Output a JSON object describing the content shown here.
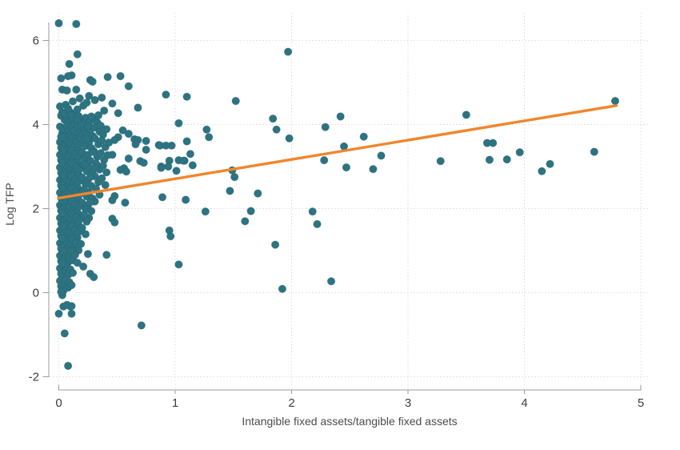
{
  "chart_data": {
    "type": "scatter",
    "title": "",
    "xlabel": "Intangible fixed assets/tangible fixed assets",
    "ylabel": "Log TFP",
    "xlim": [
      0,
      5
    ],
    "ylim": [
      -2,
      6
    ],
    "grid": "dotted",
    "legend": "none",
    "x_ticks": {
      "values": [
        0,
        1,
        2,
        3,
        4,
        5
      ],
      "labels": [
        "0",
        "1",
        "2",
        "3",
        "4",
        "5"
      ]
    },
    "y_ticks": {
      "values": [
        -2,
        0,
        2,
        4,
        6
      ],
      "labels": [
        "-2",
        "0",
        "2",
        "4",
        "6"
      ]
    },
    "colors": {
      "point": "#2d7381",
      "point_edge": "#23616f",
      "trend": "#f0862c",
      "axis": "#9b9b9b",
      "tick_text": "#3d3d3d",
      "axis_title": "#4c4c4c",
      "grid": "#d9d9d9",
      "background": "#ffffff"
    },
    "trend": {
      "x1": 0,
      "y1": 2.25,
      "x2": 4.79,
      "y2": 4.45
    },
    "points": [
      [
        0.0,
        6.41
      ],
      [
        0.15,
        6.39
      ],
      [
        1.97,
        5.73
      ],
      [
        0.16,
        5.67
      ],
      [
        0.09,
        5.44
      ],
      [
        0.11,
        5.17
      ],
      [
        0.08,
        5.15
      ],
      [
        0.53,
        5.15
      ],
      [
        0.42,
        5.13
      ],
      [
        0.02,
        5.1
      ],
      [
        0.27,
        5.06
      ],
      [
        0.29,
        5.02
      ],
      [
        0.6,
        4.91
      ],
      [
        0.03,
        4.83
      ],
      [
        0.15,
        4.83
      ],
      [
        0.07,
        4.81
      ],
      [
        0.92,
        4.71
      ],
      [
        0.26,
        4.68
      ],
      [
        1.1,
        4.66
      ],
      [
        0.18,
        4.62
      ],
      [
        0.37,
        4.64
      ],
      [
        0.31,
        4.58
      ],
      [
        1.52,
        4.56
      ],
      [
        4.78,
        4.56
      ],
      [
        0.46,
        4.5
      ],
      [
        0.06,
        4.47
      ],
      [
        1.84,
        4.14
      ],
      [
        2.42,
        4.19
      ],
      [
        3.5,
        4.23
      ],
      [
        0.68,
        4.4
      ],
      [
        0.39,
        4.33
      ],
      [
        0.01,
        4.43
      ],
      [
        0.03,
        4.29
      ],
      [
        0.1,
        4.29
      ],
      [
        0.51,
        4.27
      ],
      [
        0.13,
        4.24
      ],
      [
        1.03,
        4.03
      ],
      [
        2.29,
        3.94
      ],
      [
        1.87,
        3.88
      ],
      [
        1.27,
        3.88
      ],
      [
        0.55,
        3.86
      ],
      [
        0.6,
        3.78
      ],
      [
        1.29,
        3.7
      ],
      [
        1.98,
        3.67
      ],
      [
        0.51,
        3.7
      ],
      [
        0.48,
        3.63
      ],
      [
        0.65,
        3.65
      ],
      [
        0.68,
        3.63
      ],
      [
        0.66,
        3.53
      ],
      [
        0.75,
        3.61
      ],
      [
        1.1,
        3.6
      ],
      [
        0.86,
        3.51
      ],
      [
        0.87,
        3.5
      ],
      [
        0.92,
        3.5
      ],
      [
        0.97,
        3.5
      ],
      [
        2.45,
        3.48
      ],
      [
        3.68,
        3.56
      ],
      [
        3.73,
        3.56
      ],
      [
        2.62,
        3.71
      ],
      [
        2.77,
        3.26
      ],
      [
        0.75,
        3.4
      ],
      [
        4.6,
        3.35
      ],
      [
        3.96,
        3.34
      ],
      [
        1.13,
        3.3
      ],
      [
        0.46,
        3.28
      ],
      [
        0.6,
        3.19
      ],
      [
        3.85,
        3.17
      ],
      [
        3.7,
        3.16
      ],
      [
        2.28,
        3.15
      ],
      [
        1.03,
        3.15
      ],
      [
        0.95,
        3.14
      ],
      [
        1.08,
        3.14
      ],
      [
        1.07,
        3.14
      ],
      [
        3.28,
        3.13
      ],
      [
        0.7,
        3.13
      ],
      [
        0.73,
        3.09
      ],
      [
        4.22,
        3.06
      ],
      [
        1.15,
        3.03
      ],
      [
        0.94,
        3.0
      ],
      [
        0.88,
        3.0
      ],
      [
        2.47,
        2.98
      ],
      [
        0.88,
        2.97
      ],
      [
        0.56,
        2.96
      ],
      [
        2.7,
        2.94
      ],
      [
        0.53,
        2.92
      ],
      [
        1.49,
        2.91
      ],
      [
        1.01,
        2.9
      ],
      [
        4.15,
        2.89
      ],
      [
        0.58,
        2.88
      ],
      [
        1.51,
        2.75
      ],
      [
        1.47,
        2.42
      ],
      [
        1.71,
        2.36
      ],
      [
        0.89,
        2.27
      ],
      [
        0.48,
        2.3
      ],
      [
        1.09,
        2.21
      ],
      [
        0.46,
        2.2
      ],
      [
        0.57,
        2.14
      ],
      [
        2.18,
        1.93
      ],
      [
        1.65,
        1.94
      ],
      [
        1.26,
        1.93
      ],
      [
        0.46,
        1.76
      ],
      [
        1.6,
        1.7
      ],
      [
        0.48,
        1.67
      ],
      [
        2.22,
        1.63
      ],
      [
        0.95,
        1.48
      ],
      [
        0.96,
        1.34
      ],
      [
        1.86,
        1.14
      ],
      [
        1.03,
        0.67
      ],
      [
        2.34,
        0.27
      ],
      [
        1.92,
        0.09
      ],
      [
        0.71,
        -0.78
      ],
      [
        0.03,
        -0.06
      ],
      [
        0.04,
        -0.33
      ],
      [
        0.1,
        -0.33
      ],
      [
        0.07,
        -0.29
      ],
      [
        0.11,
        -0.32
      ],
      [
        0.0,
        -0.5
      ],
      [
        0.11,
        -0.5
      ],
      [
        0.05,
        -0.97
      ],
      [
        0.08,
        -1.74
      ],
      [
        0.27,
        0.45
      ],
      [
        0.3,
        0.37
      ],
      [
        0.41,
        0.9
      ],
      [
        0.25,
        0.92
      ],
      [
        0.21,
        0.62
      ],
      [
        0.02,
        4.21
      ],
      [
        0.05,
        4.11
      ],
      [
        0.07,
        4.18
      ],
      [
        0.09,
        4.05
      ],
      [
        0.12,
        4.15
      ],
      [
        0.14,
        4.02
      ],
      [
        0.17,
        4.2
      ],
      [
        0.2,
        4.08
      ],
      [
        0.23,
        4.16
      ],
      [
        0.26,
        4.04
      ],
      [
        0.3,
        4.12
      ],
      [
        0.34,
        4.22
      ],
      [
        0.05,
        4.25
      ],
      [
        0.1,
        4.24
      ],
      [
        0.16,
        4.1
      ],
      [
        0.21,
        4.02
      ],
      [
        0.28,
        4.19
      ],
      [
        0.33,
        4.05
      ],
      [
        0.12,
        4.55
      ],
      [
        0.21,
        4.45
      ],
      [
        0.08,
        4.38
      ],
      [
        0.16,
        4.36
      ],
      [
        0.24,
        4.52
      ],
      [
        0.01,
        3.95
      ],
      [
        0.03,
        3.8
      ],
      [
        0.04,
        3.9
      ],
      [
        0.06,
        3.74
      ],
      [
        0.07,
        3.97
      ],
      [
        0.08,
        3.84
      ],
      [
        0.1,
        3.77
      ],
      [
        0.11,
        3.92
      ],
      [
        0.13,
        3.85
      ],
      [
        0.15,
        3.72
      ],
      [
        0.16,
        3.95
      ],
      [
        0.18,
        3.81
      ],
      [
        0.2,
        3.75
      ],
      [
        0.22,
        3.9
      ],
      [
        0.24,
        3.79
      ],
      [
        0.27,
        3.87
      ],
      [
        0.29,
        3.73
      ],
      [
        0.31,
        3.93
      ],
      [
        0.35,
        3.83
      ],
      [
        0.38,
        3.76
      ],
      [
        0.41,
        3.89
      ],
      [
        0.02,
        3.71
      ],
      [
        0.09,
        3.7
      ],
      [
        0.19,
        3.98
      ],
      [
        0.25,
        3.96
      ],
      [
        0.36,
        3.97
      ],
      [
        0.01,
        3.58
      ],
      [
        0.02,
        3.45
      ],
      [
        0.04,
        3.66
      ],
      [
        0.05,
        3.52
      ],
      [
        0.07,
        3.61
      ],
      [
        0.08,
        3.43
      ],
      [
        0.1,
        3.55
      ],
      [
        0.12,
        3.68
      ],
      [
        0.13,
        3.47
      ],
      [
        0.15,
        3.6
      ],
      [
        0.17,
        3.41
      ],
      [
        0.19,
        3.56
      ],
      [
        0.21,
        3.64
      ],
      [
        0.23,
        3.49
      ],
      [
        0.26,
        3.58
      ],
      [
        0.28,
        3.44
      ],
      [
        0.31,
        3.67
      ],
      [
        0.34,
        3.53
      ],
      [
        0.37,
        3.62
      ],
      [
        0.4,
        3.46
      ],
      [
        0.43,
        3.57
      ],
      [
        0.03,
        3.69
      ],
      [
        0.06,
        3.4
      ],
      [
        0.24,
        3.65
      ],
      [
        0.01,
        3.28
      ],
      [
        0.02,
        3.15
      ],
      [
        0.03,
        3.36
      ],
      [
        0.05,
        3.22
      ],
      [
        0.06,
        3.31
      ],
      [
        0.08,
        3.12
      ],
      [
        0.09,
        3.25
      ],
      [
        0.11,
        3.38
      ],
      [
        0.12,
        3.17
      ],
      [
        0.14,
        3.3
      ],
      [
        0.16,
        3.11
      ],
      [
        0.18,
        3.26
      ],
      [
        0.2,
        3.34
      ],
      [
        0.22,
        3.19
      ],
      [
        0.25,
        3.28
      ],
      [
        0.27,
        3.14
      ],
      [
        0.3,
        3.37
      ],
      [
        0.33,
        3.23
      ],
      [
        0.36,
        3.32
      ],
      [
        0.39,
        3.16
      ],
      [
        0.42,
        3.27
      ],
      [
        0.04,
        3.39
      ],
      [
        0.13,
        3.1
      ],
      [
        0.29,
        3.35
      ],
      [
        0.01,
        2.98
      ],
      [
        0.02,
        2.85
      ],
      [
        0.04,
        3.06
      ],
      [
        0.05,
        2.92
      ],
      [
        0.07,
        3.01
      ],
      [
        0.08,
        2.82
      ],
      [
        0.1,
        2.95
      ],
      [
        0.11,
        3.08
      ],
      [
        0.13,
        2.87
      ],
      [
        0.15,
        3.0
      ],
      [
        0.17,
        2.81
      ],
      [
        0.19,
        2.96
      ],
      [
        0.21,
        3.04
      ],
      [
        0.24,
        2.89
      ],
      [
        0.26,
        2.98
      ],
      [
        0.29,
        2.84
      ],
      [
        0.32,
        3.07
      ],
      [
        0.35,
        2.93
      ],
      [
        0.38,
        3.02
      ],
      [
        0.41,
        2.86
      ],
      [
        0.03,
        3.09
      ],
      [
        0.12,
        2.8
      ],
      [
        0.22,
        3.05
      ],
      [
        0.31,
        2.97
      ],
      [
        0.01,
        2.68
      ],
      [
        0.02,
        2.55
      ],
      [
        0.03,
        2.76
      ],
      [
        0.05,
        2.62
      ],
      [
        0.06,
        2.71
      ],
      [
        0.08,
        2.52
      ],
      [
        0.09,
        2.65
      ],
      [
        0.11,
        2.78
      ],
      [
        0.12,
        2.57
      ],
      [
        0.14,
        2.7
      ],
      [
        0.16,
        2.51
      ],
      [
        0.18,
        2.66
      ],
      [
        0.2,
        2.74
      ],
      [
        0.23,
        2.59
      ],
      [
        0.25,
        2.68
      ],
      [
        0.28,
        2.54
      ],
      [
        0.31,
        2.77
      ],
      [
        0.34,
        2.63
      ],
      [
        0.37,
        2.72
      ],
      [
        0.4,
        2.56
      ],
      [
        0.04,
        2.79
      ],
      [
        0.13,
        2.5
      ],
      [
        0.27,
        2.75
      ],
      [
        0.01,
        2.38
      ],
      [
        0.02,
        2.25
      ],
      [
        0.04,
        2.46
      ],
      [
        0.05,
        2.32
      ],
      [
        0.07,
        2.41
      ],
      [
        0.08,
        2.22
      ],
      [
        0.1,
        2.35
      ],
      [
        0.11,
        2.48
      ],
      [
        0.13,
        2.27
      ],
      [
        0.15,
        2.4
      ],
      [
        0.17,
        2.21
      ],
      [
        0.19,
        2.36
      ],
      [
        0.21,
        2.44
      ],
      [
        0.24,
        2.29
      ],
      [
        0.26,
        2.38
      ],
      [
        0.29,
        2.24
      ],
      [
        0.32,
        2.47
      ],
      [
        0.35,
        2.33
      ],
      [
        0.03,
        2.49
      ],
      [
        0.12,
        2.2
      ],
      [
        0.22,
        2.45
      ],
      [
        0.01,
        2.08
      ],
      [
        0.02,
        1.95
      ],
      [
        0.03,
        2.16
      ],
      [
        0.05,
        2.02
      ],
      [
        0.06,
        2.11
      ],
      [
        0.08,
        1.92
      ],
      [
        0.09,
        2.05
      ],
      [
        0.11,
        2.18
      ],
      [
        0.12,
        1.97
      ],
      [
        0.14,
        2.1
      ],
      [
        0.16,
        1.91
      ],
      [
        0.18,
        2.06
      ],
      [
        0.2,
        2.14
      ],
      [
        0.23,
        1.99
      ],
      [
        0.25,
        2.08
      ],
      [
        0.28,
        1.94
      ],
      [
        0.31,
        2.17
      ],
      [
        0.04,
        2.19
      ],
      [
        0.13,
        1.9
      ],
      [
        0.27,
        2.15
      ],
      [
        0.01,
        1.78
      ],
      [
        0.02,
        1.65
      ],
      [
        0.04,
        1.86
      ],
      [
        0.05,
        1.72
      ],
      [
        0.07,
        1.81
      ],
      [
        0.08,
        1.62
      ],
      [
        0.1,
        1.75
      ],
      [
        0.11,
        1.88
      ],
      [
        0.13,
        1.67
      ],
      [
        0.15,
        1.8
      ],
      [
        0.17,
        1.61
      ],
      [
        0.19,
        1.76
      ],
      [
        0.21,
        1.84
      ],
      [
        0.24,
        1.69
      ],
      [
        0.26,
        1.78
      ],
      [
        0.03,
        1.89
      ],
      [
        0.12,
        1.6
      ],
      [
        0.22,
        1.85
      ],
      [
        0.01,
        1.48
      ],
      [
        0.02,
        1.35
      ],
      [
        0.03,
        1.56
      ],
      [
        0.05,
        1.42
      ],
      [
        0.06,
        1.51
      ],
      [
        0.08,
        1.32
      ],
      [
        0.09,
        1.45
      ],
      [
        0.11,
        1.58
      ],
      [
        0.12,
        1.37
      ],
      [
        0.14,
        1.5
      ],
      [
        0.16,
        1.31
      ],
      [
        0.18,
        1.46
      ],
      [
        0.2,
        1.54
      ],
      [
        0.23,
        1.39
      ],
      [
        0.04,
        1.59
      ],
      [
        0.13,
        1.3
      ],
      [
        0.01,
        1.18
      ],
      [
        0.02,
        1.05
      ],
      [
        0.04,
        1.26
      ],
      [
        0.05,
        1.12
      ],
      [
        0.07,
        1.21
      ],
      [
        0.08,
        1.02
      ],
      [
        0.1,
        1.15
      ],
      [
        0.11,
        1.28
      ],
      [
        0.13,
        1.07
      ],
      [
        0.15,
        1.2
      ],
      [
        0.17,
        1.01
      ],
      [
        0.19,
        1.16
      ],
      [
        0.03,
        1.29
      ],
      [
        0.12,
        1.0
      ],
      [
        0.01,
        0.88
      ],
      [
        0.02,
        0.75
      ],
      [
        0.03,
        0.96
      ],
      [
        0.05,
        0.82
      ],
      [
        0.06,
        0.91
      ],
      [
        0.08,
        0.72
      ],
      [
        0.09,
        0.85
      ],
      [
        0.11,
        0.98
      ],
      [
        0.12,
        0.77
      ],
      [
        0.14,
        0.9
      ],
      [
        0.16,
        0.71
      ],
      [
        0.04,
        0.99
      ],
      [
        0.01,
        0.58
      ],
      [
        0.02,
        0.45
      ],
      [
        0.04,
        0.66
      ],
      [
        0.05,
        0.52
      ],
      [
        0.07,
        0.61
      ],
      [
        0.08,
        0.42
      ],
      [
        0.1,
        0.55
      ],
      [
        0.12,
        0.47
      ],
      [
        0.03,
        0.69
      ],
      [
        0.01,
        0.28
      ],
      [
        0.02,
        0.15
      ],
      [
        0.03,
        0.36
      ],
      [
        0.05,
        0.22
      ],
      [
        0.06,
        0.31
      ],
      [
        0.08,
        0.12
      ],
      [
        0.09,
        0.25
      ],
      [
        0.04,
        0.05
      ],
      [
        0.11,
        0.18
      ],
      [
        0.02,
        0.02
      ]
    ]
  }
}
